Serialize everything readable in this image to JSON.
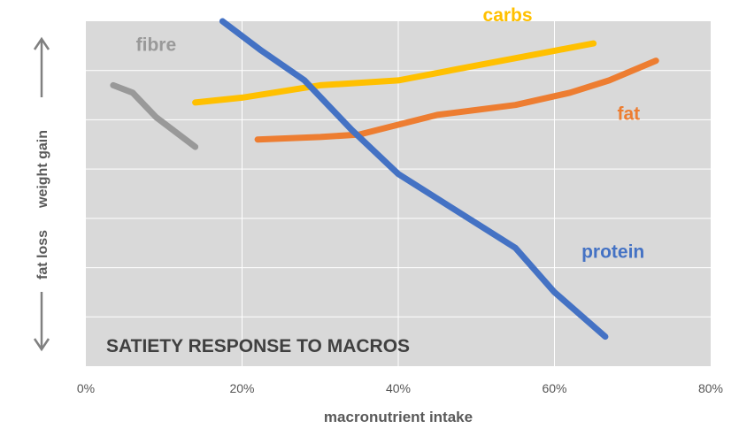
{
  "chart_data": {
    "type": "line",
    "title": "SATIETY RESPONSE TO MACROS",
    "xlabel": "macronutrient intake",
    "ylabel_low": "fat loss",
    "ylabel_high": "weight gain",
    "xlim": [
      0,
      80
    ],
    "x_ticks": [
      "0%",
      "20%",
      "40%",
      "60%",
      "80%"
    ],
    "ylim": [
      0,
      7
    ],
    "y_grid_lines": 7,
    "grid": true,
    "series": [
      {
        "name": "fibre",
        "color": "#999999",
        "x": [
          3.5,
          6,
          9,
          14
        ],
        "y": [
          5.7,
          5.55,
          5.05,
          4.45
        ]
      },
      {
        "name": "carbs",
        "color": "#FFC000",
        "x": [
          14,
          20,
          30,
          40,
          50,
          60,
          65
        ],
        "y": [
          5.35,
          5.45,
          5.7,
          5.8,
          6.1,
          6.4,
          6.55
        ]
      },
      {
        "name": "fat",
        "color": "#ED7D31",
        "x": [
          22,
          30,
          35,
          40,
          45,
          55,
          62,
          67,
          73
        ],
        "y": [
          4.6,
          4.65,
          4.7,
          4.9,
          5.1,
          5.3,
          5.55,
          5.8,
          6.2
        ]
      },
      {
        "name": "protein",
        "color": "#4472C4",
        "x": [
          17.5,
          22.5,
          28,
          34,
          40,
          45,
          55,
          60,
          66.5
        ],
        "y": [
          7.0,
          6.4,
          5.8,
          4.8,
          3.9,
          3.4,
          2.4,
          1.5,
          0.6
        ]
      }
    ],
    "series_labels": [
      {
        "name": "fibre",
        "text": "fibre",
        "color": "#999999",
        "x": 9,
        "y": 6.4
      },
      {
        "name": "carbs",
        "text": "carbs",
        "color": "#FFC000",
        "x": 54,
        "y": 7.0
      },
      {
        "name": "fat",
        "text": "fat",
        "color": "#ED7D31",
        "x": 69.5,
        "y": 5.0
      },
      {
        "name": "protein",
        "text": "protein",
        "color": "#4472C4",
        "x": 67.5,
        "y": 2.2
      }
    ]
  },
  "colors": {
    "plot_background": "#D9D9D9",
    "grid": "#FFFFFF",
    "arrow": "#808080"
  }
}
